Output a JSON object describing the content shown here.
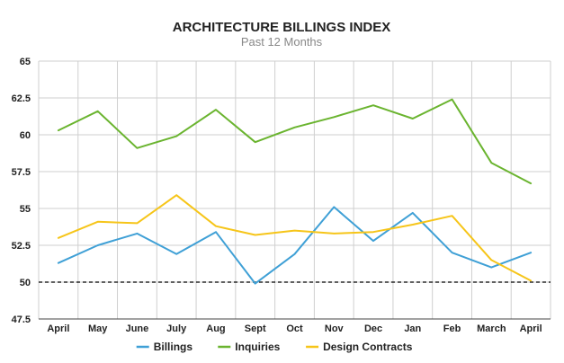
{
  "chart_data": {
    "type": "line",
    "title": "ARCHITECTURE BILLINGS INDEX",
    "subtitle": "Past 12 Months",
    "xlabel": "",
    "ylabel": "",
    "categories": [
      "April",
      "May",
      "June",
      "July",
      "Aug",
      "Sept",
      "Oct",
      "Nov",
      "Dec",
      "Jan",
      "Feb",
      "March",
      "April"
    ],
    "ylim": [
      47.5,
      65
    ],
    "yticks": [
      47.5,
      50,
      52.5,
      55,
      57.5,
      60,
      62.5,
      65
    ],
    "ytick_labels": [
      "47.5",
      "50",
      "52.5",
      "55",
      "57.5",
      "60",
      "62.5",
      "65"
    ],
    "grid": true,
    "reference_line": {
      "value": 50,
      "style": "dashed",
      "color": "#000000"
    },
    "legend_position": "bottom",
    "series": [
      {
        "name": "Billings",
        "color": "#3fa0d6",
        "values": [
          51.3,
          52.5,
          53.3,
          51.9,
          53.4,
          49.9,
          51.9,
          55.1,
          52.8,
          54.7,
          52.0,
          51.0,
          52.0
        ]
      },
      {
        "name": "Inquiries",
        "color": "#6ab42f",
        "values": [
          60.3,
          61.6,
          59.1,
          59.9,
          61.7,
          59.5,
          60.5,
          61.2,
          62.0,
          61.1,
          62.4,
          58.1,
          56.7
        ]
      },
      {
        "name": "Design Contracts",
        "color": "#f6c519",
        "values": [
          53.0,
          54.1,
          54.0,
          55.9,
          53.8,
          53.2,
          53.5,
          53.3,
          53.4,
          53.9,
          54.5,
          51.5,
          50.1
        ]
      }
    ]
  }
}
